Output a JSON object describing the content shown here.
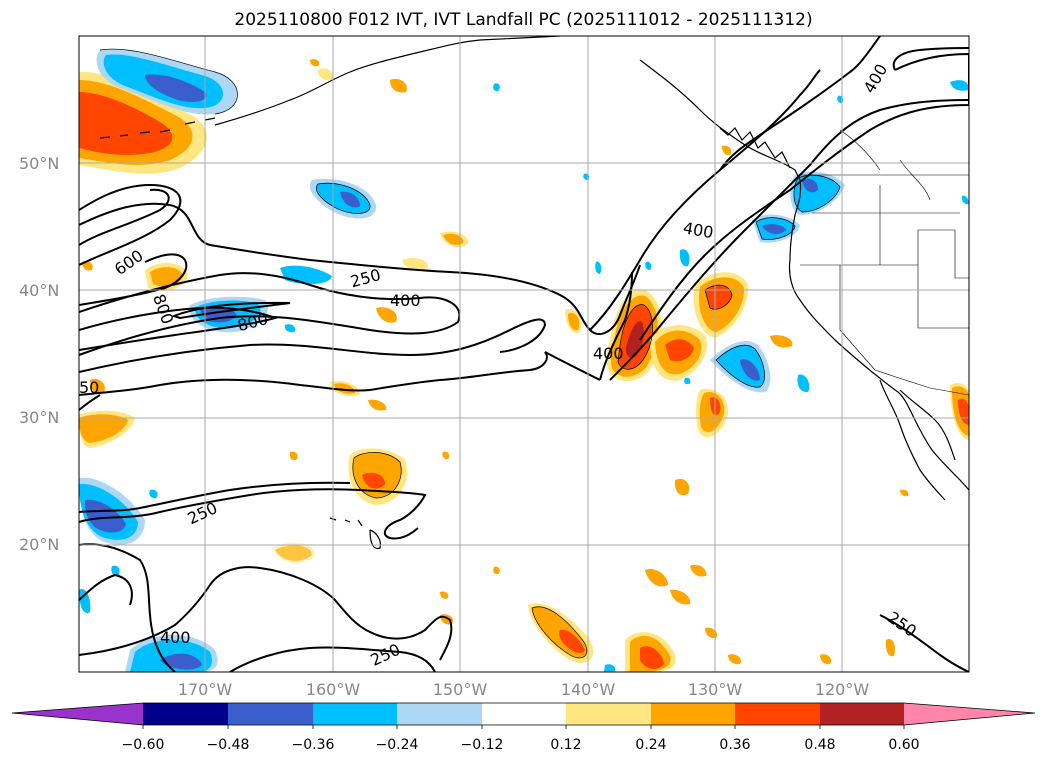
{
  "title": "2025110800 F012 IVT, IVT Landfall PC (2025111012 - 2025111312)",
  "lat_labels": [
    "50°N",
    "40°N",
    "30°N",
    "20°N"
  ],
  "lon_labels": [
    "170°W",
    "160°W",
    "150°W",
    "140°W",
    "130°W",
    "120°W"
  ],
  "colorbar": {
    "ticks": [
      "−0.60",
      "−0.48",
      "−0.36",
      "−0.24",
      "−0.12",
      "0.12",
      "0.24",
      "0.36",
      "0.48",
      "0.60"
    ],
    "colors": [
      "#9933cc",
      "#00008b",
      "#3a5fcd",
      "#00bfff",
      "#add8f5",
      "#ffffff",
      "#ffe680",
      "#ffa500",
      "#ff4500",
      "#b22222",
      "#ff85aa"
    ]
  },
  "contour_labels": [
    "400",
    "600",
    "250",
    "400",
    "800",
    "800",
    "400",
    "400",
    "50",
    "250",
    "400",
    "250",
    "250"
  ],
  "colors": {
    "pos_1": "#ffe680",
    "pos_2": "#ffa500",
    "pos_3": "#ff4500",
    "pos_4": "#b22222",
    "neg_1": "#add8f5",
    "neg_2": "#00bfff",
    "neg_3": "#3a5fcd"
  }
}
